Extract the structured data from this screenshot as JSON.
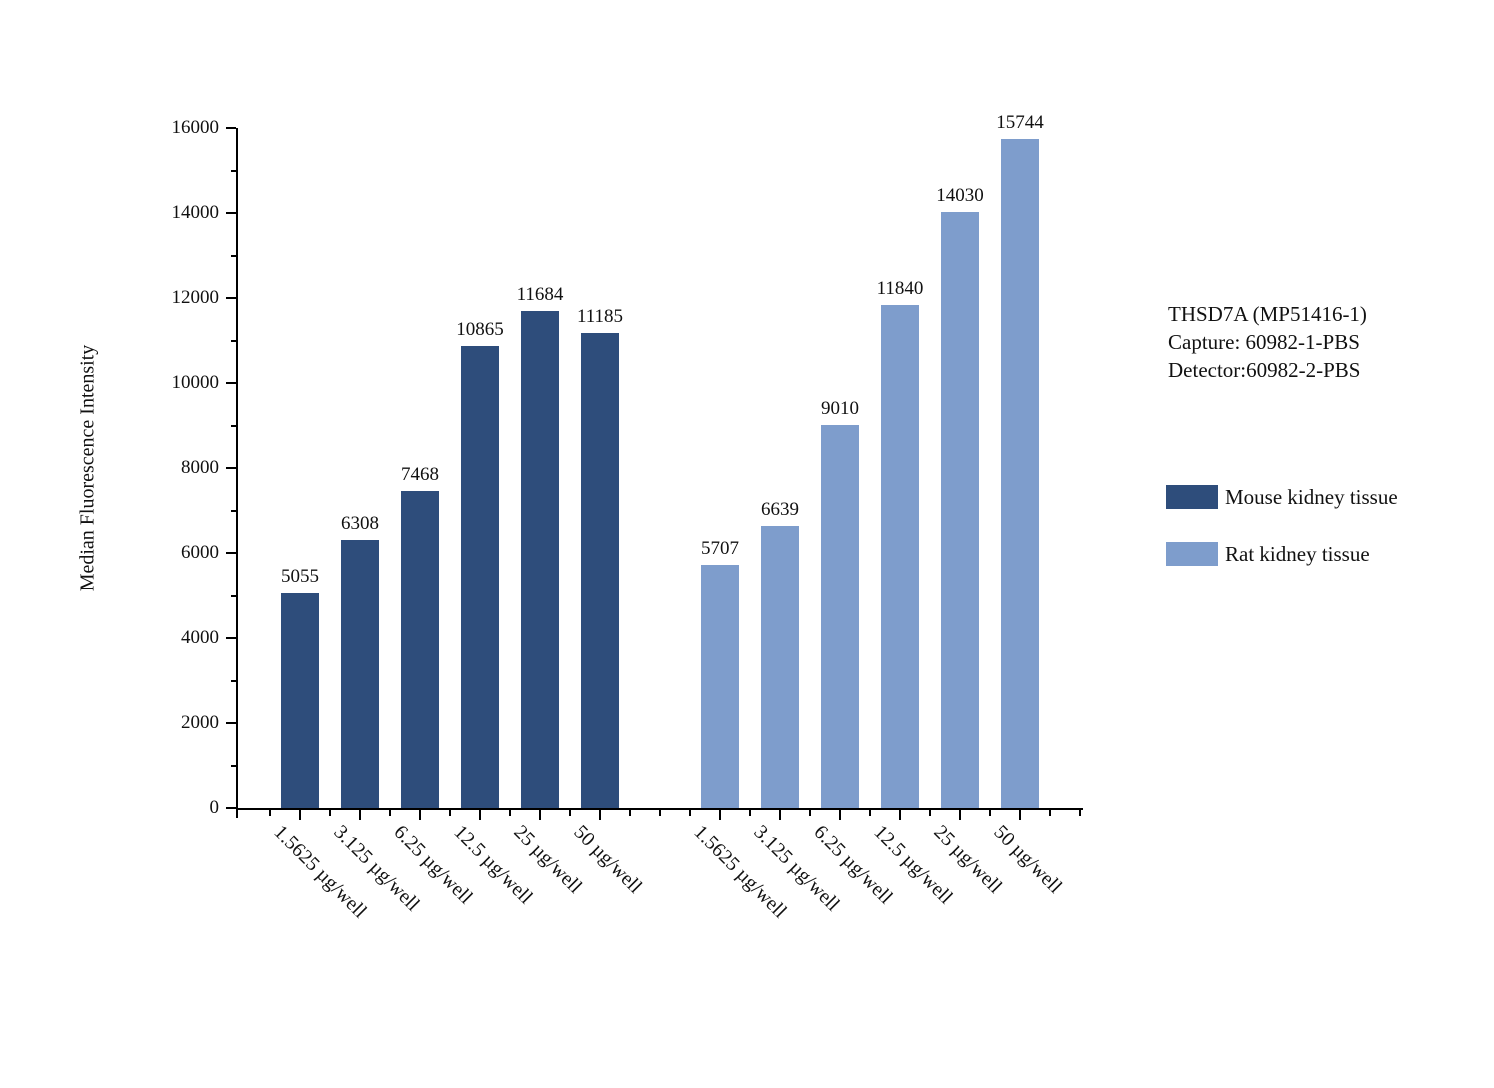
{
  "annotation": {
    "line1": "THSD7A (MP51416-1)",
    "line2": "Capture: 60982-1-PBS",
    "line3": "Detector:60982-2-PBS"
  },
  "legend": [
    {
      "label": "Mouse kidney tissue",
      "color": "#2E4D7B"
    },
    {
      "label": "Rat kidney tissue",
      "color": "#7E9DCC"
    }
  ],
  "chart_data": {
    "type": "bar",
    "title": "",
    "xlabel": "",
    "ylabel": "Median Fluorescence Intensity",
    "ylim": [
      0,
      16000
    ],
    "ytick_major_step": 2000,
    "ytick_minor_step": 1000,
    "grid": false,
    "legend_position": "right",
    "categories": [
      "1.5625 µg/well",
      "3.125 µg/well",
      "6.25 µg/well",
      "12.5 µg/well",
      "25 µg/well",
      "50 µg/well"
    ],
    "series": [
      {
        "name": "Mouse kidney tissue",
        "color": "#2E4D7B",
        "values": [
          5055,
          6308,
          7468,
          10865,
          11684,
          11185
        ]
      },
      {
        "name": "Rat kidney tissue",
        "color": "#7E9DCC",
        "values": [
          5707,
          6639,
          9010,
          11840,
          14030,
          15744
        ]
      }
    ]
  }
}
